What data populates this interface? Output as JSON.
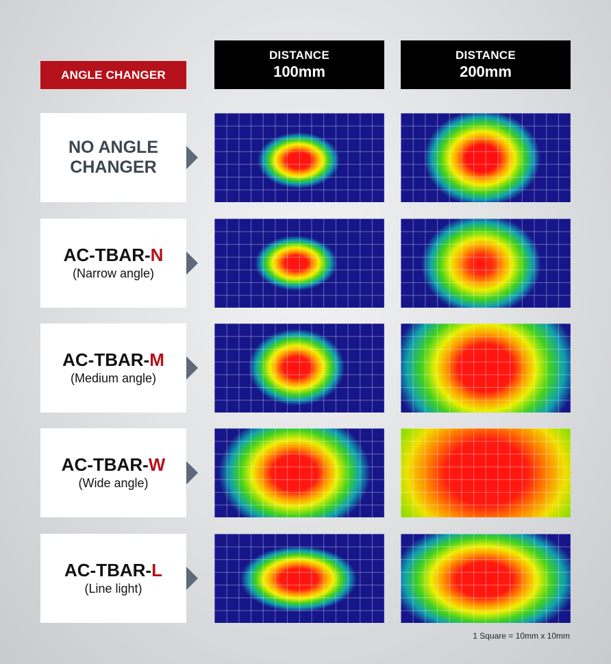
{
  "header": {
    "angle_changer": "ANGLE CHANGER",
    "columns": [
      {
        "line1": "DISTANCE",
        "line2": "100mm"
      },
      {
        "line1": "DISTANCE",
        "line2": "200mm"
      }
    ]
  },
  "rows": [
    {
      "line1": "NO ANGLE",
      "line2": "CHANGER"
    },
    {
      "prefix": "AC-TBAR-",
      "accent": "N",
      "sub": "(Narrow angle)"
    },
    {
      "prefix": "AC-TBAR-",
      "accent": "M",
      "sub": "(Medium angle)"
    },
    {
      "prefix": "AC-TBAR-",
      "accent": "W",
      "sub": "(Wide angle)"
    },
    {
      "prefix": "AC-TBAR-",
      "accent": "L",
      "sub": "(Line light)"
    }
  ],
  "footnote": "1 Square = 10mm x 10mm",
  "colors": {
    "accent_red": "#b5121b",
    "arrow_gray": "#5d6a78",
    "heatmap_background": "#16168a"
  }
}
